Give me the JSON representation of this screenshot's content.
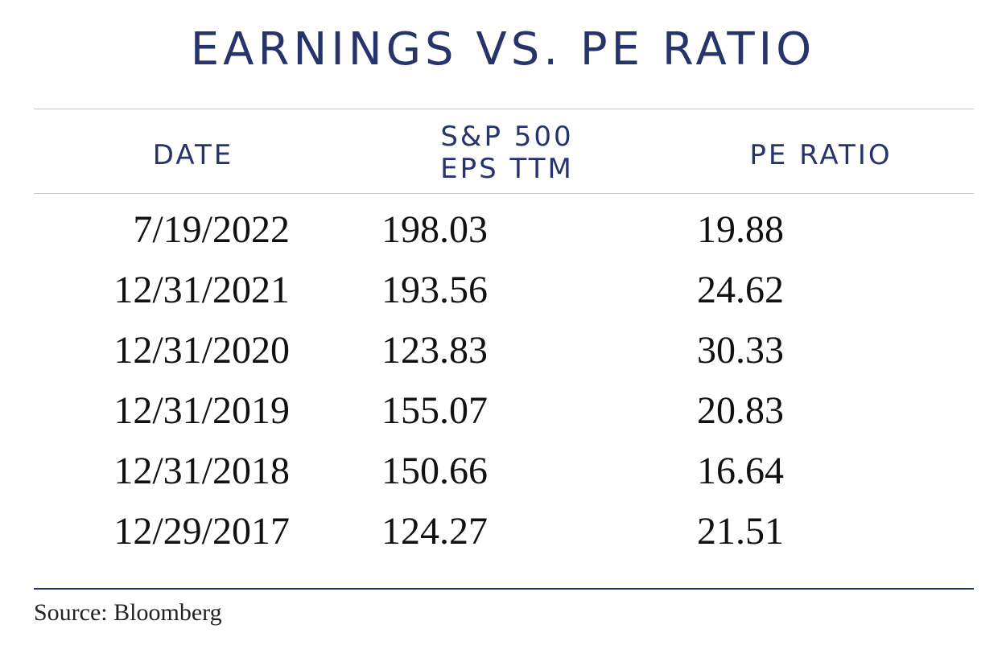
{
  "title": "EARNINGS VS. PE RATIO",
  "columns": {
    "date": "DATE",
    "eps_line1": "S&P 500",
    "eps_line2": "EPS TTM",
    "pe": "PE RATIO"
  },
  "rows": [
    {
      "date": "7/19/2022",
      "eps": "198.03",
      "pe": "19.88"
    },
    {
      "date": "12/31/2021",
      "eps": "193.56",
      "pe": "24.62"
    },
    {
      "date": "12/31/2020",
      "eps": "123.83",
      "pe": "30.33"
    },
    {
      "date": "12/31/2019",
      "eps": "155.07",
      "pe": "20.83"
    },
    {
      "date": "12/31/2018",
      "eps": "150.66",
      "pe": "16.64"
    },
    {
      "date": "12/29/2017",
      "eps": "124.27",
      "pe": "21.51"
    }
  ],
  "source": "Source: Bloomberg",
  "colors": {
    "header_navy": "#27336b",
    "body_text": "#111111",
    "divider_gray": "#c6c6c6"
  },
  "chart_data": {
    "type": "table",
    "title": "EARNINGS VS. PE RATIO",
    "columns": [
      "DATE",
      "S&P 500 EPS TTM",
      "PE RATIO"
    ],
    "rows": [
      [
        "7/19/2022",
        198.03,
        19.88
      ],
      [
        "12/31/2021",
        193.56,
        24.62
      ],
      [
        "12/31/2020",
        123.83,
        30.33
      ],
      [
        "12/31/2019",
        155.07,
        20.83
      ],
      [
        "12/31/2018",
        150.66,
        16.64
      ],
      [
        "12/29/2017",
        124.27,
        21.51
      ]
    ]
  }
}
